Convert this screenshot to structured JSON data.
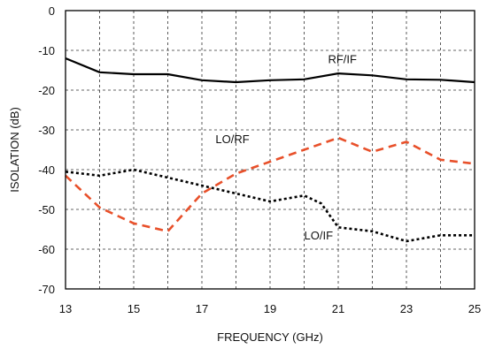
{
  "chart_data": {
    "type": "line",
    "xlabel": "FREQUENCY (GHz)",
    "ylabel": "ISOLATION (dB)",
    "xlim": [
      13,
      25
    ],
    "ylim": [
      -70,
      0
    ],
    "x_ticks": [
      13,
      15,
      17,
      19,
      21,
      23,
      25
    ],
    "y_ticks": [
      0,
      -10,
      -20,
      -30,
      -40,
      -50,
      -60,
      -70
    ],
    "grid": true,
    "legend": "none",
    "series": [
      {
        "name": "RF/IF",
        "color": "#000000",
        "style": "solid",
        "label_at": [
          20.7,
          -13.2
        ],
        "x": [
          13,
          14,
          15,
          16,
          17,
          18,
          19,
          20,
          21,
          22,
          23,
          24,
          25
        ],
        "y": [
          -12,
          -15.5,
          -16,
          -16,
          -17.5,
          -18,
          -17.5,
          -17.3,
          -15.8,
          -16.3,
          -17.3,
          -17.4,
          -18
        ]
      },
      {
        "name": "LO/RF",
        "color": "#e8502a",
        "style": "dashed",
        "label_at": [
          17.4,
          -33.3
        ],
        "x": [
          13,
          14,
          15,
          16,
          17,
          18,
          19,
          20,
          21,
          22,
          23,
          24,
          25
        ],
        "y": [
          -41.5,
          -49.5,
          -53.5,
          -55.5,
          -46,
          -41,
          -38,
          -35,
          -32,
          -35.5,
          -33,
          -37.5,
          -38.5
        ]
      },
      {
        "name": "LO/IF",
        "color": "#000000",
        "style": "dotted",
        "label_at": [
          20,
          -57.5
        ],
        "x": [
          13,
          14,
          15,
          16,
          17,
          18,
          19,
          20,
          20.5,
          21,
          22,
          23,
          24,
          25
        ],
        "y": [
          -40.5,
          -41.5,
          -40,
          -42,
          -44,
          -46,
          -48,
          -46.5,
          -48.5,
          -54.5,
          -55.5,
          -58,
          -56.5,
          -56.5
        ]
      }
    ]
  }
}
